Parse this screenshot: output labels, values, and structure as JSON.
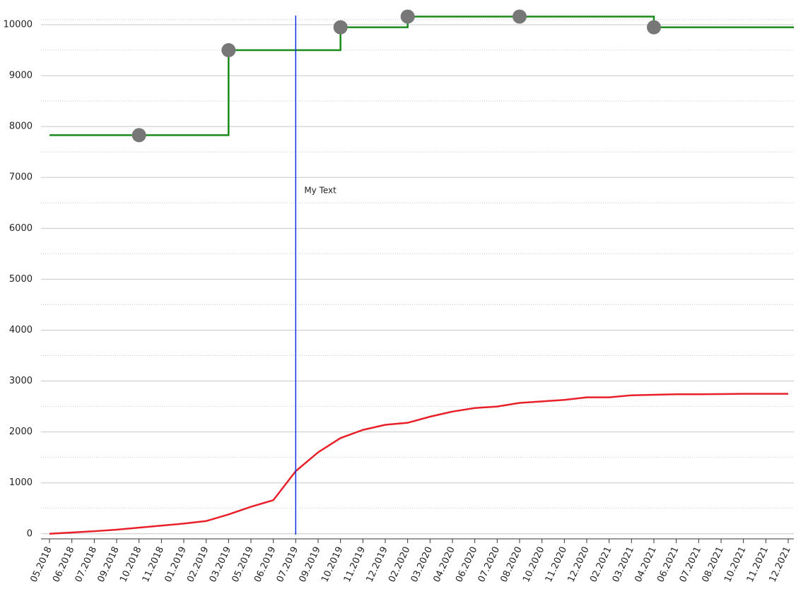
{
  "chart_data": {
    "type": "line",
    "categories": [
      "05.2018",
      "06.2018",
      "07.2018",
      "09.2018",
      "10.2018",
      "11.2018",
      "01.2019",
      "02.2019",
      "03.2019",
      "05.2019",
      "06.2019",
      "07.2019",
      "09.2019",
      "10.2019",
      "11.2019",
      "12.2019",
      "02.2020",
      "03.2020",
      "04.2020",
      "06.2020",
      "07.2020",
      "08.2020",
      "10.2020",
      "11.2020",
      "12.2020",
      "02.2021",
      "03.2021",
      "04.2021",
      "06.2021",
      "07.2021",
      "08.2021",
      "10.2021",
      "11.2021",
      "12.2021"
    ],
    "series": [
      {
        "color": "#e8202a",
        "step": false,
        "values": [
          0,
          25,
          50,
          80,
          120,
          160,
          200,
          250,
          380,
          530,
          660,
          1230,
          1600,
          1880,
          2040,
          2140,
          2180,
          2300,
          2400,
          2470,
          2500,
          2570,
          2600,
          2630,
          2680,
          2680,
          2720,
          2730,
          2740,
          2740,
          2745,
          2750,
          2750,
          2750
        ]
      },
      {
        "color": "#1a8a1a",
        "step": true,
        "values": [
          7830,
          7830,
          7830,
          7830,
          7830,
          7830,
          7830,
          7830,
          9500,
          9500,
          9500,
          9500,
          9500,
          9950,
          9950,
          9950,
          10160,
          10160,
          10160,
          10160,
          10160,
          10160,
          10160,
          10160,
          10160,
          10160,
          10160,
          9950,
          9950,
          9950,
          9950,
          9950,
          9950,
          9950
        ]
      },
      {
        "color": "#777777",
        "marker": true,
        "values": [
          null,
          null,
          null,
          null,
          7830,
          null,
          null,
          null,
          9500,
          null,
          null,
          null,
          null,
          9950,
          null,
          null,
          10160,
          null,
          null,
          null,
          null,
          10160,
          null,
          null,
          null,
          null,
          null,
          9950,
          null,
          null,
          null,
          null,
          null,
          null
        ]
      }
    ],
    "annotation": {
      "text": "My Text",
      "at": "07.2019",
      "color": "#1030e0"
    },
    "ylim": [
      -100,
      10200
    ],
    "yticks": [
      0,
      1000,
      2000,
      3000,
      4000,
      5000,
      6000,
      7000,
      8000,
      9000,
      10000
    ],
    "grid": true
  }
}
